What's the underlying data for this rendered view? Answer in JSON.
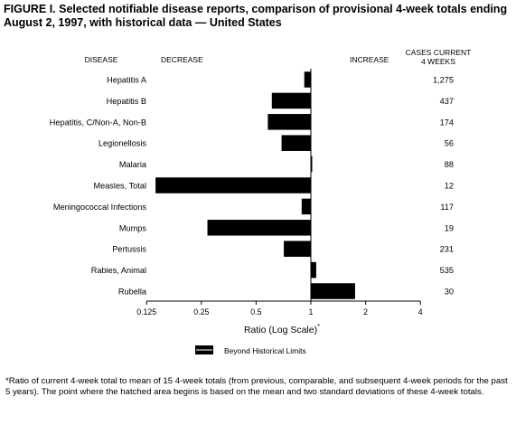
{
  "figure": {
    "title": "FIGURE I. Selected notifiable disease reports, comparison of provisional 4-week totals ending August 2, 1997, with historical data — United States",
    "footnote_marker": "*",
    "footnote": "Ratio of current 4-week total to mean of 15 4-week totals (from previous, comparable, and subsequent 4-week periods for the past 5 years). The point where the hatched area begins is based on the mean and two standard deviations of these 4-week totals."
  },
  "chart_data": {
    "type": "bar",
    "orientation": "horizontal",
    "scale": "log2",
    "baseline": 1,
    "xlim": [
      0.125,
      4
    ],
    "xticks": [
      "0.125",
      "0.25",
      "0.5",
      "1",
      "2",
      "4"
    ],
    "xlabel": "Ratio (Log Scale)",
    "xlabel_marker": "*",
    "header_disease": "DISEASE",
    "header_decrease": "DECREASE",
    "header_increase": "INCREASE",
    "header_cases": [
      "CASES CURRENT",
      "4 WEEKS"
    ],
    "legend_label": "Beyond Historical Limits",
    "bar_color": "#000000",
    "categories": [
      "Hepatitis A",
      "Hepatitis B",
      "Hepatitis, C/Non-A, Non-B",
      "Legionellosis",
      "Malaria",
      "Measles, Total",
      "Meningococcal Infections",
      "Mumps",
      "Pertussis",
      "Rabies, Animal",
      "Rubella"
    ],
    "values": [
      0.92,
      0.61,
      0.58,
      0.69,
      1.01,
      0.14,
      0.89,
      0.27,
      0.71,
      1.07,
      1.75
    ],
    "cases": [
      "1,275",
      "437",
      "174",
      "56",
      "88",
      "12",
      "117",
      "19",
      "231",
      "535",
      "30"
    ]
  }
}
